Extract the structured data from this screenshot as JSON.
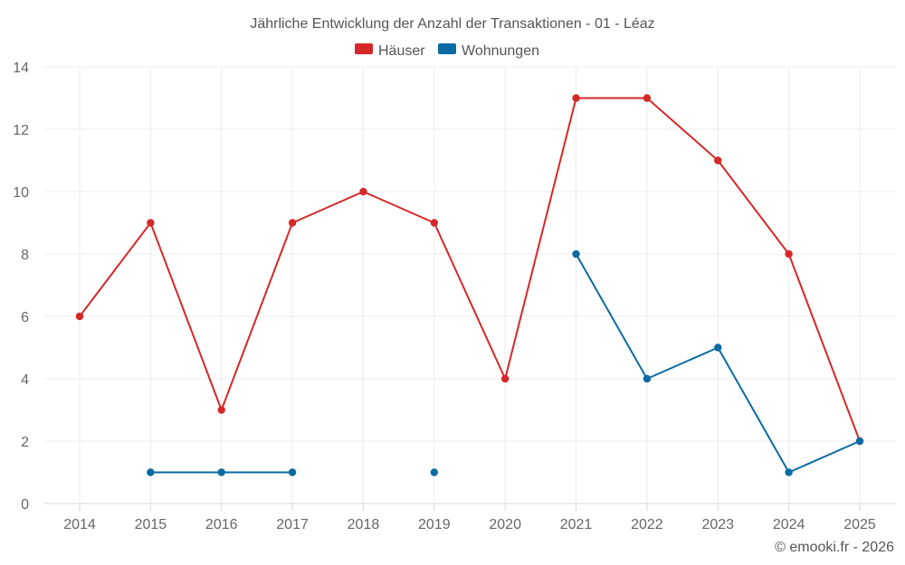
{
  "chart_data": {
    "type": "line",
    "title": "Jährliche Entwicklung der Anzahl der Transaktionen - 01 - Léaz",
    "categories": [
      "2014",
      "2015",
      "2016",
      "2017",
      "2018",
      "2019",
      "2020",
      "2021",
      "2022",
      "2023",
      "2024",
      "2025"
    ],
    "ylim": [
      0,
      14
    ],
    "yticks": [
      0,
      2,
      4,
      6,
      8,
      10,
      12,
      14
    ],
    "grid": true,
    "legend_position": "top-center",
    "series": [
      {
        "name": "Häuser",
        "color": "#d62728",
        "values": [
          6,
          9,
          3,
          9,
          10,
          9,
          4,
          13,
          13,
          11,
          8,
          2
        ]
      },
      {
        "name": "Wohnungen",
        "color": "#0b6aa2",
        "values": [
          null,
          1,
          1,
          1,
          null,
          1,
          null,
          8,
          4,
          5,
          1,
          2
        ]
      }
    ],
    "xlabel": "",
    "ylabel": ""
  },
  "credit": "© emooki.fr - 2026"
}
